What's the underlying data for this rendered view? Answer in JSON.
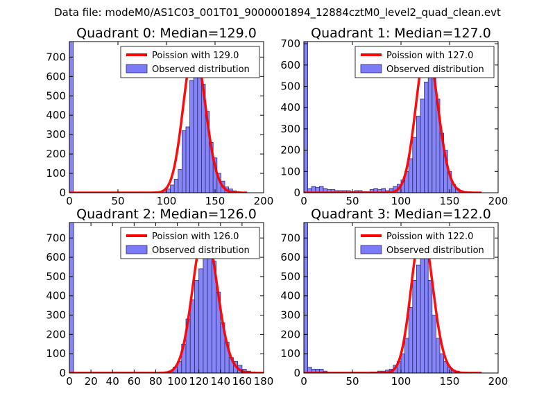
{
  "figure": {
    "suptitle": "Data file: modeM0/AS1C03_001T01_9000001894_12884cztM0_level2_quad_clean.evt"
  },
  "colors": {
    "bar_fill": "#7b7bf5",
    "bar_edge": "#2b2b7a",
    "curve": "#ff0000",
    "axes": "#000000",
    "background": "#ffffff"
  },
  "chart_data": [
    {
      "type": "bar",
      "title": "Quadrant 0: Median=129.0",
      "xlim": [
        0,
        200
      ],
      "ylim": [
        0,
        780
      ],
      "xticks": [
        0,
        50,
        100,
        150,
        200
      ],
      "yticks": [
        0,
        100,
        200,
        300,
        400,
        500,
        600,
        700
      ],
      "legend": {
        "placement": "top-right",
        "line_label": "Poission with 129.0",
        "bar_label": "Observed distribution"
      },
      "histogram": {
        "bin_width": 4,
        "bins": [
          [
            0,
            780
          ],
          [
            96,
            10
          ],
          [
            100,
            20
          ],
          [
            104,
            40
          ],
          [
            108,
            70
          ],
          [
            112,
            120
          ],
          [
            116,
            320
          ],
          [
            120,
            340
          ],
          [
            124,
            580
          ],
          [
            128,
            660
          ],
          [
            132,
            680
          ],
          [
            136,
            560
          ],
          [
            140,
            420
          ],
          [
            144,
            260
          ],
          [
            148,
            180
          ],
          [
            152,
            100
          ],
          [
            156,
            60
          ],
          [
            160,
            30
          ],
          [
            164,
            20
          ],
          [
            168,
            10
          ],
          [
            172,
            5
          ]
        ]
      },
      "poisson": {
        "mean": 129.0,
        "peak": 745,
        "x_range": [
          0,
          183
        ]
      }
    },
    {
      "type": "bar",
      "title": "Quadrant 1: Median=127.0",
      "xlim": [
        0,
        200
      ],
      "ylim": [
        0,
        710
      ],
      "xticks": [
        0,
        50,
        100,
        150,
        200
      ],
      "yticks": [
        0,
        100,
        200,
        300,
        400,
        500,
        600,
        700
      ],
      "legend": {
        "placement": "top-right",
        "line_label": "Poission with 127.0",
        "bar_label": "Observed distribution"
      },
      "histogram": {
        "bin_width": 4,
        "bins": [
          [
            0,
            710
          ],
          [
            4,
            20
          ],
          [
            8,
            30
          ],
          [
            12,
            25
          ],
          [
            16,
            30
          ],
          [
            20,
            20
          ],
          [
            24,
            15
          ],
          [
            28,
            15
          ],
          [
            32,
            10
          ],
          [
            36,
            10
          ],
          [
            40,
            10
          ],
          [
            44,
            10
          ],
          [
            48,
            5
          ],
          [
            52,
            10
          ],
          [
            56,
            10
          ],
          [
            60,
            5
          ],
          [
            64,
            5
          ],
          [
            68,
            15
          ],
          [
            72,
            20
          ],
          [
            76,
            15
          ],
          [
            80,
            20
          ],
          [
            84,
            10
          ],
          [
            88,
            20
          ],
          [
            92,
            30
          ],
          [
            96,
            40
          ],
          [
            100,
            60
          ],
          [
            104,
            100
          ],
          [
            108,
            160
          ],
          [
            112,
            260
          ],
          [
            116,
            360
          ],
          [
            120,
            440
          ],
          [
            124,
            520
          ],
          [
            128,
            560
          ],
          [
            132,
            540
          ],
          [
            136,
            440
          ],
          [
            140,
            280
          ],
          [
            144,
            200
          ],
          [
            148,
            100
          ],
          [
            152,
            40
          ],
          [
            156,
            20
          ],
          [
            160,
            10
          ],
          [
            164,
            5
          ],
          [
            168,
            5
          ]
        ]
      },
      "poisson": {
        "mean": 127.0,
        "peak": 680,
        "x_range": [
          0,
          183
        ]
      }
    },
    {
      "type": "bar",
      "title": "Quadrant 2: Median=126.0",
      "xlim": [
        0,
        180
      ],
      "ylim": [
        0,
        780
      ],
      "xticks": [
        0,
        20,
        40,
        60,
        80,
        100,
        120,
        140,
        160,
        180
      ],
      "yticks": [
        0,
        100,
        200,
        300,
        400,
        500,
        600,
        700
      ],
      "legend": {
        "placement": "top-right",
        "line_label": "Poission with 126.0",
        "bar_label": "Observed distribution"
      },
      "histogram": {
        "bin_width": 4,
        "bins": [
          [
            0,
            780
          ],
          [
            88,
            5
          ],
          [
            92,
            10
          ],
          [
            96,
            30
          ],
          [
            100,
            60
          ],
          [
            104,
            150
          ],
          [
            108,
            280
          ],
          [
            112,
            380
          ],
          [
            116,
            480
          ],
          [
            120,
            540
          ],
          [
            124,
            640
          ],
          [
            128,
            720
          ],
          [
            132,
            580
          ],
          [
            136,
            420
          ],
          [
            140,
            260
          ],
          [
            144,
            160
          ],
          [
            148,
            80
          ],
          [
            152,
            60
          ],
          [
            156,
            40
          ],
          [
            160,
            20
          ],
          [
            164,
            10
          ],
          [
            168,
            5
          ]
        ]
      },
      "poisson": {
        "mean": 126.0,
        "peak": 745,
        "x_range": [
          0,
          180
        ]
      }
    },
    {
      "type": "bar",
      "title": "Quadrant 3: Median=122.0",
      "xlim": [
        0,
        200
      ],
      "ylim": [
        0,
        780
      ],
      "xticks": [
        0,
        50,
        100,
        150,
        200
      ],
      "yticks": [
        0,
        100,
        200,
        300,
        400,
        500,
        600,
        700
      ],
      "legend": {
        "placement": "top-right",
        "line_label": "Poission with 122.0",
        "bar_label": "Observed distribution"
      },
      "histogram": {
        "bin_width": 4,
        "bins": [
          [
            0,
            780
          ],
          [
            4,
            30
          ],
          [
            8,
            20
          ],
          [
            12,
            20
          ],
          [
            16,
            20
          ],
          [
            20,
            10
          ],
          [
            68,
            5
          ],
          [
            72,
            5
          ],
          [
            76,
            10
          ],
          [
            80,
            10
          ],
          [
            84,
            15
          ],
          [
            88,
            20
          ],
          [
            92,
            40
          ],
          [
            96,
            60
          ],
          [
            100,
            100
          ],
          [
            104,
            180
          ],
          [
            108,
            340
          ],
          [
            112,
            480
          ],
          [
            116,
            560
          ],
          [
            120,
            720
          ],
          [
            124,
            640
          ],
          [
            128,
            480
          ],
          [
            132,
            300
          ],
          [
            136,
            180
          ],
          [
            140,
            100
          ],
          [
            144,
            60
          ],
          [
            148,
            30
          ],
          [
            152,
            15
          ],
          [
            156,
            10
          ]
        ]
      },
      "poisson": {
        "mean": 122.0,
        "peak": 745,
        "x_range": [
          0,
          183
        ]
      }
    }
  ]
}
